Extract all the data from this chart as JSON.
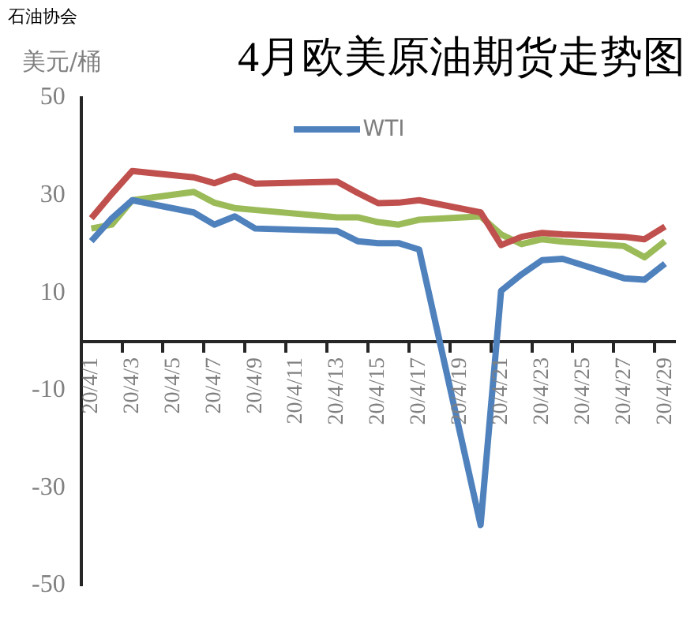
{
  "chart_data": {
    "type": "line",
    "title": "4月欧美原油期货走势图",
    "ylabel": "美元/桶",
    "annotations": [
      "石油协会"
    ],
    "categories": [
      "20/4/1",
      null,
      "20/4/3",
      null,
      "20/4/5",
      null,
      "20/4/7",
      null,
      "20/4/9",
      null,
      "20/4/11",
      null,
      "20/4/13",
      null,
      "20/4/15",
      null,
      "20/4/17",
      null,
      "20/4/19",
      null,
      "20/4/21",
      null,
      "20/4/23",
      null,
      "20/4/25",
      null,
      "20/4/27",
      null,
      "20/4/29"
    ],
    "series": [
      {
        "name": "WTI",
        "color": "#4f81bd",
        "values": [
          20.6,
          25.3,
          29,
          null,
          null,
          26.5,
          24,
          25.7,
          23.2,
          null,
          null,
          null,
          22.7,
          20.6,
          20.2,
          20.2,
          18.9,
          null,
          null,
          -37.6,
          10.4,
          13.8,
          16.7,
          17,
          null,
          null,
          13,
          12.7,
          16
        ]
      },
      {
        "color": "#c0504d",
        "values": [
          25.3,
          30.3,
          35,
          null,
          null,
          33.7,
          32.5,
          34,
          32.4,
          null,
          null,
          null,
          32.8,
          30.5,
          28.4,
          28.5,
          29,
          null,
          null,
          26.5,
          19.8,
          21.5,
          22.3,
          22,
          null,
          null,
          21.5,
          21,
          23.6
        ]
      },
      {
        "color": "#9bbb59",
        "values": [
          23.2,
          24,
          29,
          null,
          null,
          30.7,
          28.5,
          27.4,
          27,
          null,
          null,
          null,
          25.5,
          25.5,
          24.5,
          24,
          25,
          null,
          null,
          25.7,
          22,
          20,
          21,
          20.5,
          null,
          null,
          19.6,
          17.3,
          20.6
        ]
      }
    ],
    "ylim": [
      -50,
      50
    ],
    "yticks": [
      -50,
      -30,
      -10,
      10,
      30,
      50
    ],
    "grid": false,
    "legend": "top",
    "marker": "none",
    "line_style": "solid"
  }
}
